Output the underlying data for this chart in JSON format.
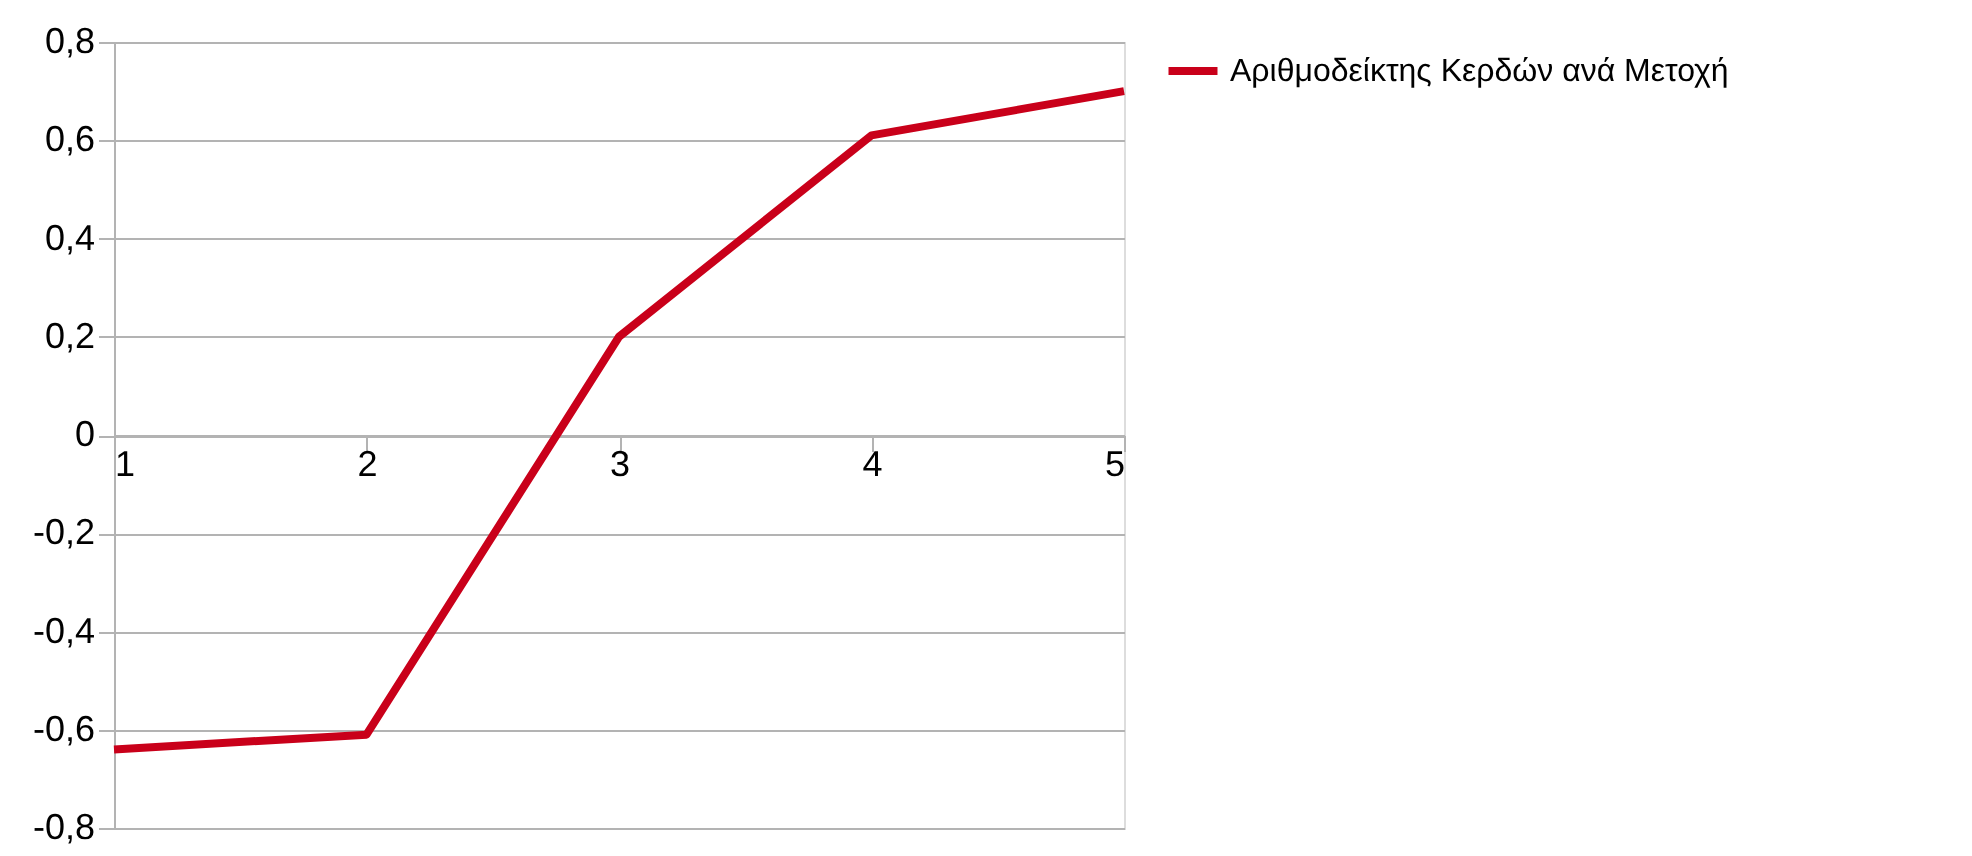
{
  "chart_data": {
    "type": "line",
    "x": [
      1,
      2,
      3,
      4,
      5
    ],
    "series": [
      {
        "name": "Αριθμοδείκτης Κερδών ανά Μετοχή",
        "color": "#c9001a",
        "values": [
          -0.64,
          -0.61,
          0.2,
          0.61,
          0.7
        ]
      }
    ],
    "xlim": [
      1,
      5
    ],
    "xticks": [
      1,
      2,
      3,
      4,
      5
    ],
    "ylim": [
      -0.8,
      0.8
    ],
    "yticks": [
      {
        "value": -0.8,
        "label": "-0,8"
      },
      {
        "value": -0.6,
        "label": "-0,6"
      },
      {
        "value": -0.4,
        "label": "-0,4"
      },
      {
        "value": -0.2,
        "label": "-0,2"
      },
      {
        "value": 0,
        "label": "0"
      },
      {
        "value": 0.2,
        "label": "0,2"
      },
      {
        "value": 0.4,
        "label": "0,4"
      },
      {
        "value": 0.6,
        "label": "0,6"
      },
      {
        "value": 0.8,
        "label": "0,8"
      }
    ],
    "grid": "y",
    "legend": "right",
    "marker": "none",
    "line_style": "solid"
  }
}
